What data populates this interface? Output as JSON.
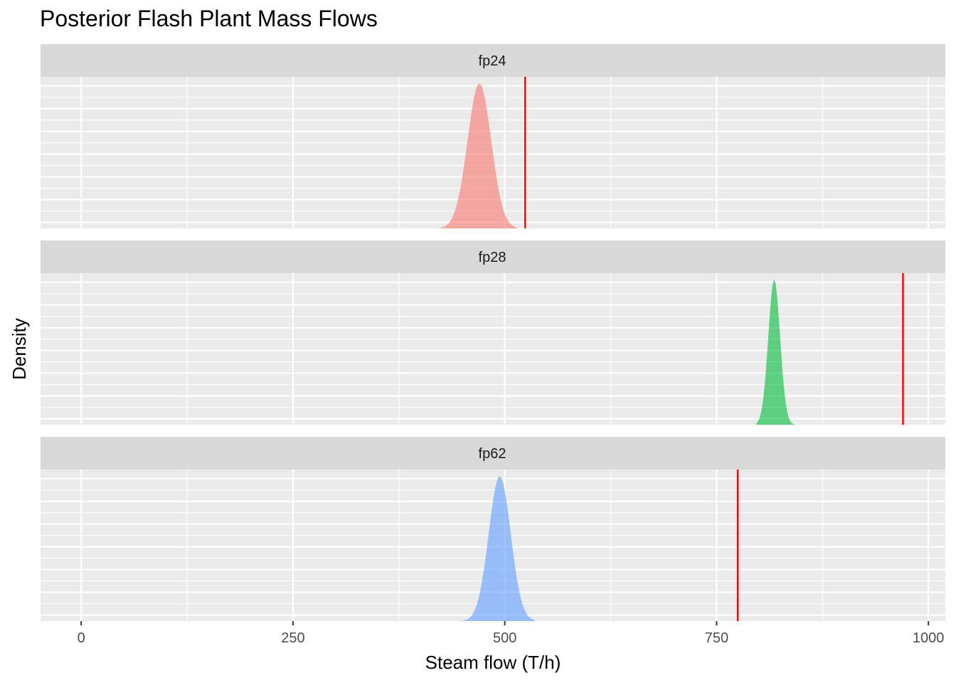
{
  "chart_data": {
    "type": "area",
    "title": "Posterior Flash Plant Mass Flows",
    "xlabel": "Steam flow (T/h)",
    "ylabel": "Density",
    "xlim": [
      -48,
      1020
    ],
    "x_ticks": [
      0,
      250,
      500,
      750,
      1000
    ],
    "grid": true,
    "legend": "none",
    "panels": [
      {
        "name": "fp24",
        "color": "#F8766D",
        "vline": 524,
        "density": {
          "mean": 470,
          "sd": 14,
          "min": 423,
          "max": 514
        }
      },
      {
        "name": "fp28",
        "color": "#00BA38",
        "vline": 970,
        "density": {
          "mean": 818,
          "sd": 7,
          "min": 797,
          "max": 841
        }
      },
      {
        "name": "fp62",
        "color": "#619CFF",
        "vline": 775,
        "density": {
          "mean": 494,
          "sd": 13,
          "min": 447,
          "max": 535
        }
      }
    ]
  }
}
